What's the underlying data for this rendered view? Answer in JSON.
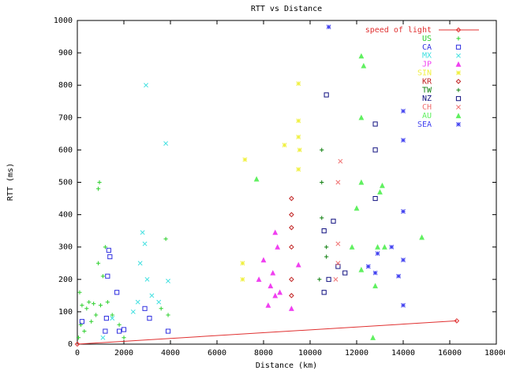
{
  "chart_data": {
    "type": "scatter",
    "title": "RTT vs Distance",
    "xlabel": "Distance (km)",
    "ylabel": "RTT (ms)",
    "xlim": [
      0,
      18000
    ],
    "ylim": [
      0,
      1000
    ],
    "x_ticks": [
      "0",
      "2000",
      "4000",
      "6000",
      "8000",
      "10000",
      "12000",
      "14000",
      "16000",
      "18000"
    ],
    "y_ticks": [
      "0",
      "100",
      "200",
      "300",
      "400",
      "500",
      "600",
      "700",
      "800",
      "900",
      "1000"
    ],
    "grid": false,
    "legend_position": "top-right",
    "series": [
      {
        "name": "speed of light",
        "marker": "diamond",
        "color": "#e03030",
        "line": true,
        "points": [
          [
            0,
            0
          ],
          [
            16300,
            72
          ]
        ]
      },
      {
        "name": "US",
        "marker": "plus",
        "color": "#30d030",
        "points": [
          [
            50,
            20
          ],
          [
            100,
            160
          ],
          [
            150,
            60
          ],
          [
            200,
            120
          ],
          [
            300,
            40
          ],
          [
            400,
            110
          ],
          [
            500,
            130
          ],
          [
            600,
            70
          ],
          [
            700,
            125
          ],
          [
            800,
            90
          ],
          [
            900,
            250
          ],
          [
            900,
            480
          ],
          [
            950,
            500
          ],
          [
            1000,
            120
          ],
          [
            1100,
            210
          ],
          [
            1200,
            300
          ],
          [
            1300,
            130
          ],
          [
            1500,
            90
          ],
          [
            1800,
            60
          ],
          [
            2000,
            20
          ],
          [
            3600,
            110
          ],
          [
            3800,
            325
          ],
          [
            3900,
            90
          ]
        ]
      },
      {
        "name": "CA",
        "marker": "square",
        "color": "#3030e0",
        "points": [
          [
            200,
            70
          ],
          [
            1200,
            40
          ],
          [
            1250,
            80
          ],
          [
            1300,
            210
          ],
          [
            1400,
            270
          ],
          [
            1350,
            290
          ],
          [
            1700,
            160
          ],
          [
            1800,
            40
          ],
          [
            2000,
            45
          ],
          [
            2900,
            110
          ],
          [
            3100,
            80
          ],
          [
            3900,
            40
          ]
        ]
      },
      {
        "name": "MX",
        "marker": "x",
        "color": "#40e0e0",
        "points": [
          [
            1100,
            20
          ],
          [
            1500,
            80
          ],
          [
            2400,
            100
          ],
          [
            2600,
            130
          ],
          [
            2700,
            250
          ],
          [
            2800,
            345
          ],
          [
            2900,
            310
          ],
          [
            2950,
            800
          ],
          [
            3000,
            200
          ],
          [
            3200,
            150
          ],
          [
            3500,
            130
          ],
          [
            3800,
            620
          ],
          [
            3900,
            195
          ]
        ]
      },
      {
        "name": "JP",
        "marker": "triangle",
        "color": "#f040f0",
        "points": [
          [
            7800,
            200
          ],
          [
            8000,
            260
          ],
          [
            8200,
            120
          ],
          [
            8300,
            180
          ],
          [
            8400,
            220
          ],
          [
            8500,
            150
          ],
          [
            8500,
            345
          ],
          [
            8600,
            300
          ],
          [
            8700,
            160
          ],
          [
            9200,
            110
          ],
          [
            9500,
            245
          ]
        ]
      },
      {
        "name": "SIN",
        "marker": "star",
        "color": "#f0f040",
        "points": [
          [
            7100,
            200
          ],
          [
            7100,
            250
          ],
          [
            7200,
            570
          ],
          [
            8900,
            615
          ],
          [
            9500,
            540
          ],
          [
            9500,
            640
          ],
          [
            9500,
            690
          ],
          [
            9550,
            600
          ],
          [
            9500,
            805
          ]
        ]
      },
      {
        "name": "KR",
        "marker": "diamond",
        "color": "#c02020",
        "points": [
          [
            9200,
            150
          ],
          [
            9200,
            200
          ],
          [
            9200,
            300
          ],
          [
            9200,
            360
          ],
          [
            9200,
            400
          ],
          [
            9200,
            450
          ]
        ]
      },
      {
        "name": "TW",
        "marker": "plus",
        "color": "#108010",
        "points": [
          [
            10400,
            200
          ],
          [
            10500,
            390
          ],
          [
            10500,
            500
          ],
          [
            10500,
            600
          ],
          [
            10700,
            300
          ],
          [
            10700,
            270
          ]
        ]
      },
      {
        "name": "NZ",
        "marker": "square",
        "color": "#101080",
        "points": [
          [
            10600,
            160
          ],
          [
            10600,
            350
          ],
          [
            10700,
            770
          ],
          [
            10800,
            200
          ],
          [
            11000,
            380
          ],
          [
            11200,
            240
          ],
          [
            11500,
            220
          ],
          [
            12800,
            450
          ],
          [
            12800,
            600
          ],
          [
            12800,
            680
          ]
        ]
      },
      {
        "name": "CH",
        "marker": "x",
        "color": "#f07070",
        "points": [
          [
            11100,
            200
          ],
          [
            11200,
            250
          ],
          [
            11200,
            310
          ],
          [
            11200,
            500
          ],
          [
            11300,
            565
          ]
        ]
      },
      {
        "name": "AU",
        "marker": "triangle",
        "color": "#60f060",
        "points": [
          [
            7700,
            510
          ],
          [
            11800,
            300
          ],
          [
            12000,
            420
          ],
          [
            12200,
            230
          ],
          [
            12200,
            500
          ],
          [
            12200,
            700
          ],
          [
            12200,
            890
          ],
          [
            12300,
            860
          ],
          [
            12700,
            20
          ],
          [
            12800,
            180
          ],
          [
            12900,
            300
          ],
          [
            13000,
            470
          ],
          [
            13100,
            490
          ],
          [
            13200,
            300
          ],
          [
            14800,
            330
          ]
        ]
      },
      {
        "name": "SEA",
        "marker": "star",
        "color": "#4040f0",
        "points": [
          [
            10800,
            980
          ],
          [
            12500,
            240
          ],
          [
            12800,
            220
          ],
          [
            12900,
            280
          ],
          [
            13500,
            300
          ],
          [
            13800,
            210
          ],
          [
            14000,
            120
          ],
          [
            14000,
            260
          ],
          [
            14000,
            410
          ],
          [
            14000,
            630
          ],
          [
            14000,
            720
          ]
        ]
      }
    ]
  }
}
